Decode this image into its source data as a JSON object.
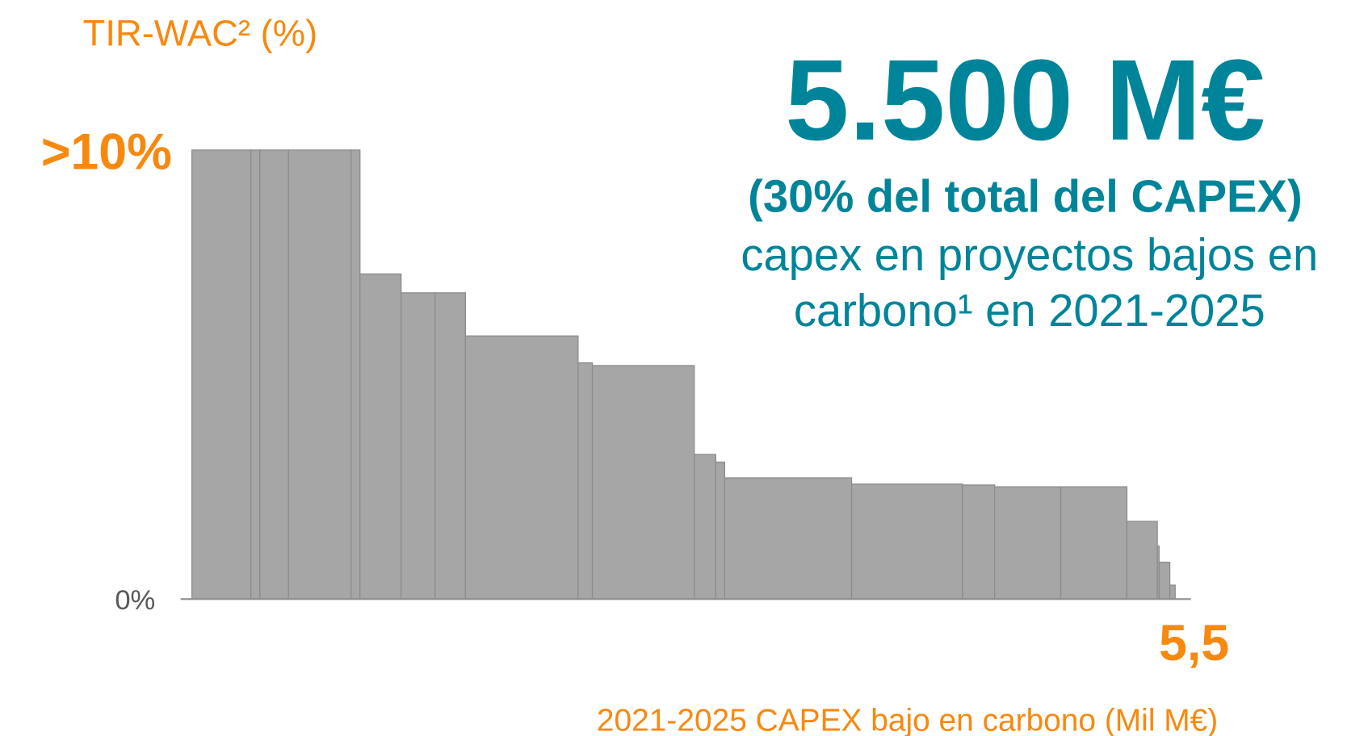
{
  "chart_data": {
    "type": "histogram",
    "y_axis_label": "TIR-WAC²  (%)",
    "x_axis_label": "2021-2025 CAPEX bajo en carbono (Mil M€)",
    "headline": "5.500 M€",
    "subheadline": "(30% del total del CAPEX)",
    "description": [
      "capex en proyectos bajos en",
      "carbono¹ en 2021-2025"
    ],
    "bins": [
      0,
      0.33,
      0.38,
      0.54,
      0.89,
      0.94,
      1.17,
      1.36,
      1.53,
      2.16,
      2.24,
      2.81,
      2.93,
      2.98,
      3.69,
      4.31,
      4.49,
      4.86,
      5.23,
      5.4,
      5.41,
      5.47,
      5.5
    ],
    "values": [
      10,
      10,
      10,
      10,
      10,
      7.24,
      6.82,
      6.82,
      5.86,
      5.26,
      5.2,
      3.22,
      3.05,
      2.7,
      2.56,
      2.54,
      2.5,
      2.5,
      1.73,
      1.18,
      0.82,
      0.31
    ],
    "color": "#a6a6a6",
    "xlim": [
      0,
      5.5
    ],
    "xticks": [
      {
        "value": 5.5,
        "label": "5,5"
      }
    ],
    "ylim": [
      0,
      10
    ],
    "yticks": [
      {
        "value": 0,
        "label": "0%"
      },
      {
        "value": 10,
        "label": ">10%"
      }
    ],
    "grid": false
  }
}
